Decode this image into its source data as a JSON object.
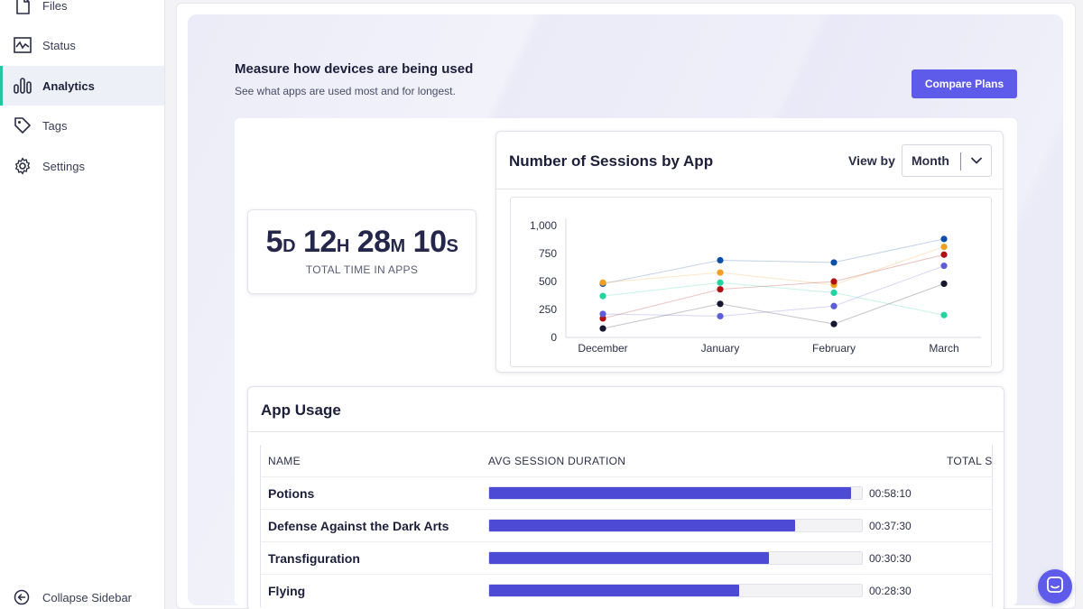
{
  "sidebar": {
    "items": [
      {
        "label": "Files",
        "icon": "file-icon"
      },
      {
        "label": "Status",
        "icon": "activity-icon"
      },
      {
        "label": "Analytics",
        "icon": "bar-chart-icon"
      },
      {
        "label": "Tags",
        "icon": "tag-icon"
      },
      {
        "label": "Settings",
        "icon": "gear-icon"
      }
    ],
    "active": "Analytics",
    "collapse_label": "Collapse Sidebar"
  },
  "header": {
    "title": "Measure how devices are being used",
    "subtitle": "See what apps are used most and for longest.",
    "compare_button": "Compare Plans"
  },
  "total_time": {
    "days": "5",
    "days_unit": "D",
    "hours": "12",
    "hours_unit": "H",
    "minutes": "28",
    "minutes_unit": "M",
    "seconds": "10",
    "seconds_unit": "S",
    "label": "TOTAL TIME IN APPS"
  },
  "sessions": {
    "title": "Number of Sessions by App",
    "view_by_label": "View by",
    "view_by_value": "Month"
  },
  "chart_data": {
    "type": "line",
    "categories": [
      "December",
      "January",
      "February",
      "March"
    ],
    "ylim": [
      0,
      1000
    ],
    "yticks": [
      "0",
      "250",
      "500",
      "750",
      "1,000"
    ],
    "grid": false,
    "legend": "none",
    "series": [
      {
        "color": "#0b4fa8",
        "values": [
          480,
          690,
          670,
          880
        ]
      },
      {
        "color": "#f0a020",
        "values": [
          490,
          580,
          470,
          810
        ]
      },
      {
        "color": "#b01010",
        "values": [
          170,
          430,
          500,
          740
        ]
      },
      {
        "color": "#23d3a0",
        "values": [
          370,
          490,
          400,
          200
        ]
      },
      {
        "color": "#5d5dd8",
        "values": [
          210,
          190,
          280,
          640
        ]
      },
      {
        "color": "#15182e",
        "values": [
          80,
          300,
          120,
          480
        ]
      }
    ]
  },
  "usage": {
    "title": "App Usage",
    "columns": [
      "NAME",
      "AVG SESSION DURATION",
      "TOTAL SE"
    ],
    "rows": [
      {
        "name": "Potions",
        "duration": "00:58:10",
        "fill": 0.97
      },
      {
        "name": "Defense Against the Dark Arts",
        "duration": "00:37:30",
        "fill": 0.82
      },
      {
        "name": "Transfiguration",
        "duration": "00:30:30",
        "fill": 0.75
      },
      {
        "name": "Flying",
        "duration": "00:28:30",
        "fill": 0.67
      }
    ]
  },
  "colors": {
    "accent": "#5f5bea",
    "active_marker": "#23c6a0",
    "bar": "#4d4ad6"
  }
}
